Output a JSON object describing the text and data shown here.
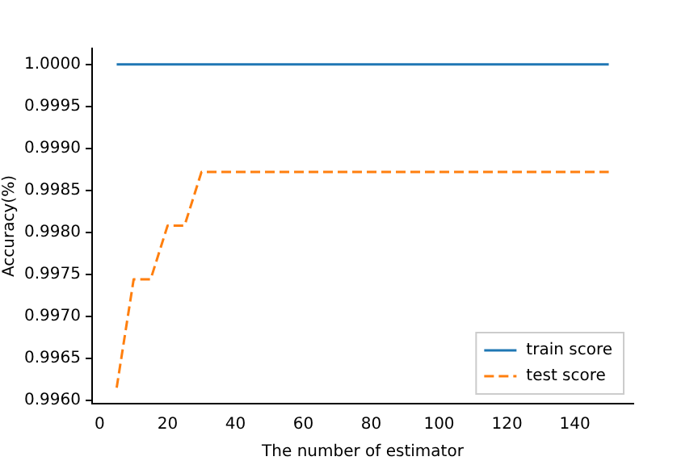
{
  "chart_data": {
    "type": "line",
    "xlabel": "The number of estimator",
    "ylabel": "Accuracy(%)",
    "xlim": [
      -2.25,
      157.25
    ],
    "xticks": [
      0,
      20,
      40,
      60,
      80,
      100,
      120,
      140
    ],
    "ylim": [
      0.99596,
      1.00019
    ],
    "yticks": [
      {
        "value": 0.996,
        "label": "0.9960"
      },
      {
        "value": 0.9965,
        "label": "0.9965"
      },
      {
        "value": 0.997,
        "label": "0.9970"
      },
      {
        "value": 0.9975,
        "label": "0.9975"
      },
      {
        "value": 0.998,
        "label": "0.9980"
      },
      {
        "value": 0.9985,
        "label": "0.9985"
      },
      {
        "value": 0.999,
        "label": "0.9990"
      },
      {
        "value": 0.9995,
        "label": "0.9995"
      },
      {
        "value": 1.0,
        "label": "1.0000"
      }
    ],
    "legend": "bottom right",
    "grid": false,
    "series": [
      {
        "name": "train score",
        "color": "#1f77b4",
        "line_style": "solid",
        "x": [
          5,
          150
        ],
        "values": [
          1.0,
          1.0
        ]
      },
      {
        "name": "test score",
        "color": "#ff7f0e",
        "line_style": "dashed",
        "x": [
          5,
          10,
          15,
          20,
          25,
          30,
          150
        ],
        "values": [
          0.99615,
          0.99744,
          0.99744,
          0.99808,
          0.99808,
          0.99872,
          0.99872
        ]
      }
    ]
  }
}
